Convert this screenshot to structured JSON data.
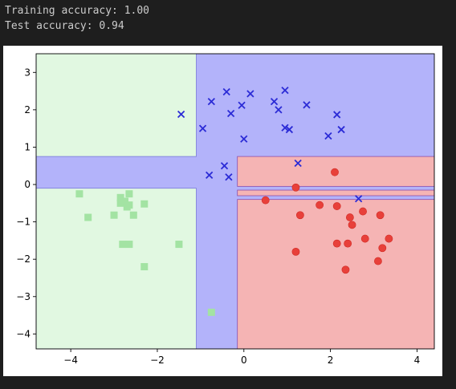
{
  "console": {
    "lines": [
      "Training accuracy: 1.00",
      "Test accuracy: 0.94"
    ]
  },
  "chart_data": {
    "type": "scatter",
    "title": "",
    "xlabel": "",
    "ylabel": "",
    "xlim": [
      -4.8,
      4.4
    ],
    "ylim": [
      -4.4,
      3.5
    ],
    "xticks": [
      -4,
      -2,
      0,
      2,
      4
    ],
    "yticks": [
      -4,
      -3,
      -2,
      -1,
      0,
      1,
      2,
      3
    ],
    "xtick_labels": [
      "−4",
      "−2",
      "0",
      "2",
      "4"
    ],
    "ytick_labels": [
      "−4",
      "−3",
      "−2",
      "−1",
      "0",
      "1",
      "2",
      "3"
    ],
    "grid": false,
    "background_region_color": "#b3b3fa",
    "regions": [
      {
        "class": "green",
        "color": "#e1f8e1",
        "x": [
          -4.8,
          -1.1
        ],
        "y": [
          0.75,
          4.6
        ]
      },
      {
        "class": "green",
        "color": "#e1f8e1",
        "x": [
          -4.8,
          -1.1
        ],
        "y": [
          -4.4,
          -0.1
        ]
      },
      {
        "class": "red",
        "color": "#f5b4b4",
        "x": [
          -0.15,
          4.4
        ],
        "y": [
          -0.05,
          0.75
        ]
      },
      {
        "class": "red",
        "color": "#f5b4b4",
        "x": [
          -0.15,
          4.4
        ],
        "y": [
          -0.3,
          -0.15
        ]
      },
      {
        "class": "red",
        "color": "#f5b4b4",
        "x": [
          -0.15,
          4.4
        ],
        "y": [
          -4.4,
          -0.4
        ]
      }
    ],
    "series": [
      {
        "marker": "x",
        "color": "#2b2bd6",
        "points": [
          [
            -1.45,
            1.88
          ],
          [
            -0.75,
            2.22
          ],
          [
            -0.4,
            2.48
          ],
          [
            -0.3,
            1.9
          ],
          [
            -0.05,
            2.12
          ],
          [
            0.15,
            2.43
          ],
          [
            0.7,
            2.22
          ],
          [
            0.8,
            2.0
          ],
          [
            0.95,
            2.52
          ],
          [
            1.45,
            2.13
          ],
          [
            2.15,
            1.87
          ],
          [
            -0.95,
            1.5
          ],
          [
            1.05,
            1.47
          ],
          [
            2.25,
            1.47
          ],
          [
            0.95,
            1.52
          ],
          [
            1.95,
            1.3
          ],
          [
            0.0,
            1.22
          ],
          [
            1.25,
            0.57
          ],
          [
            -0.8,
            0.25
          ],
          [
            -0.45,
            0.5
          ],
          [
            -0.35,
            0.2
          ],
          [
            2.65,
            -0.38
          ]
        ]
      },
      {
        "marker": "s",
        "color": "#a3e3a3",
        "points": [
          [
            -3.8,
            -0.25
          ],
          [
            -3.6,
            -0.88
          ],
          [
            -2.85,
            -0.35
          ],
          [
            -2.65,
            -0.25
          ],
          [
            -2.75,
            -0.45
          ],
          [
            -2.85,
            -0.5
          ],
          [
            -2.65,
            -0.55
          ],
          [
            -2.7,
            -0.6
          ],
          [
            -2.3,
            -0.52
          ],
          [
            -3.0,
            -0.82
          ],
          [
            -2.55,
            -0.82
          ],
          [
            -2.8,
            -1.6
          ],
          [
            -2.65,
            -1.6
          ],
          [
            -1.5,
            -1.6
          ],
          [
            -2.3,
            -2.2
          ],
          [
            -0.75,
            -3.42
          ]
        ]
      },
      {
        "marker": "o",
        "color": "#e8403a",
        "points": [
          [
            2.1,
            0.33
          ],
          [
            1.2,
            -0.08
          ],
          [
            0.5,
            -0.42
          ],
          [
            1.3,
            -0.82
          ],
          [
            1.75,
            -0.55
          ],
          [
            2.15,
            -0.58
          ],
          [
            2.45,
            -0.88
          ],
          [
            2.75,
            -0.72
          ],
          [
            3.15,
            -0.82
          ],
          [
            2.5,
            -1.08
          ],
          [
            2.8,
            -1.45
          ],
          [
            3.35,
            -1.45
          ],
          [
            2.15,
            -1.58
          ],
          [
            2.4,
            -1.58
          ],
          [
            3.2,
            -1.7
          ],
          [
            1.2,
            -1.8
          ],
          [
            3.1,
            -2.05
          ],
          [
            2.35,
            -2.28
          ]
        ]
      }
    ]
  }
}
